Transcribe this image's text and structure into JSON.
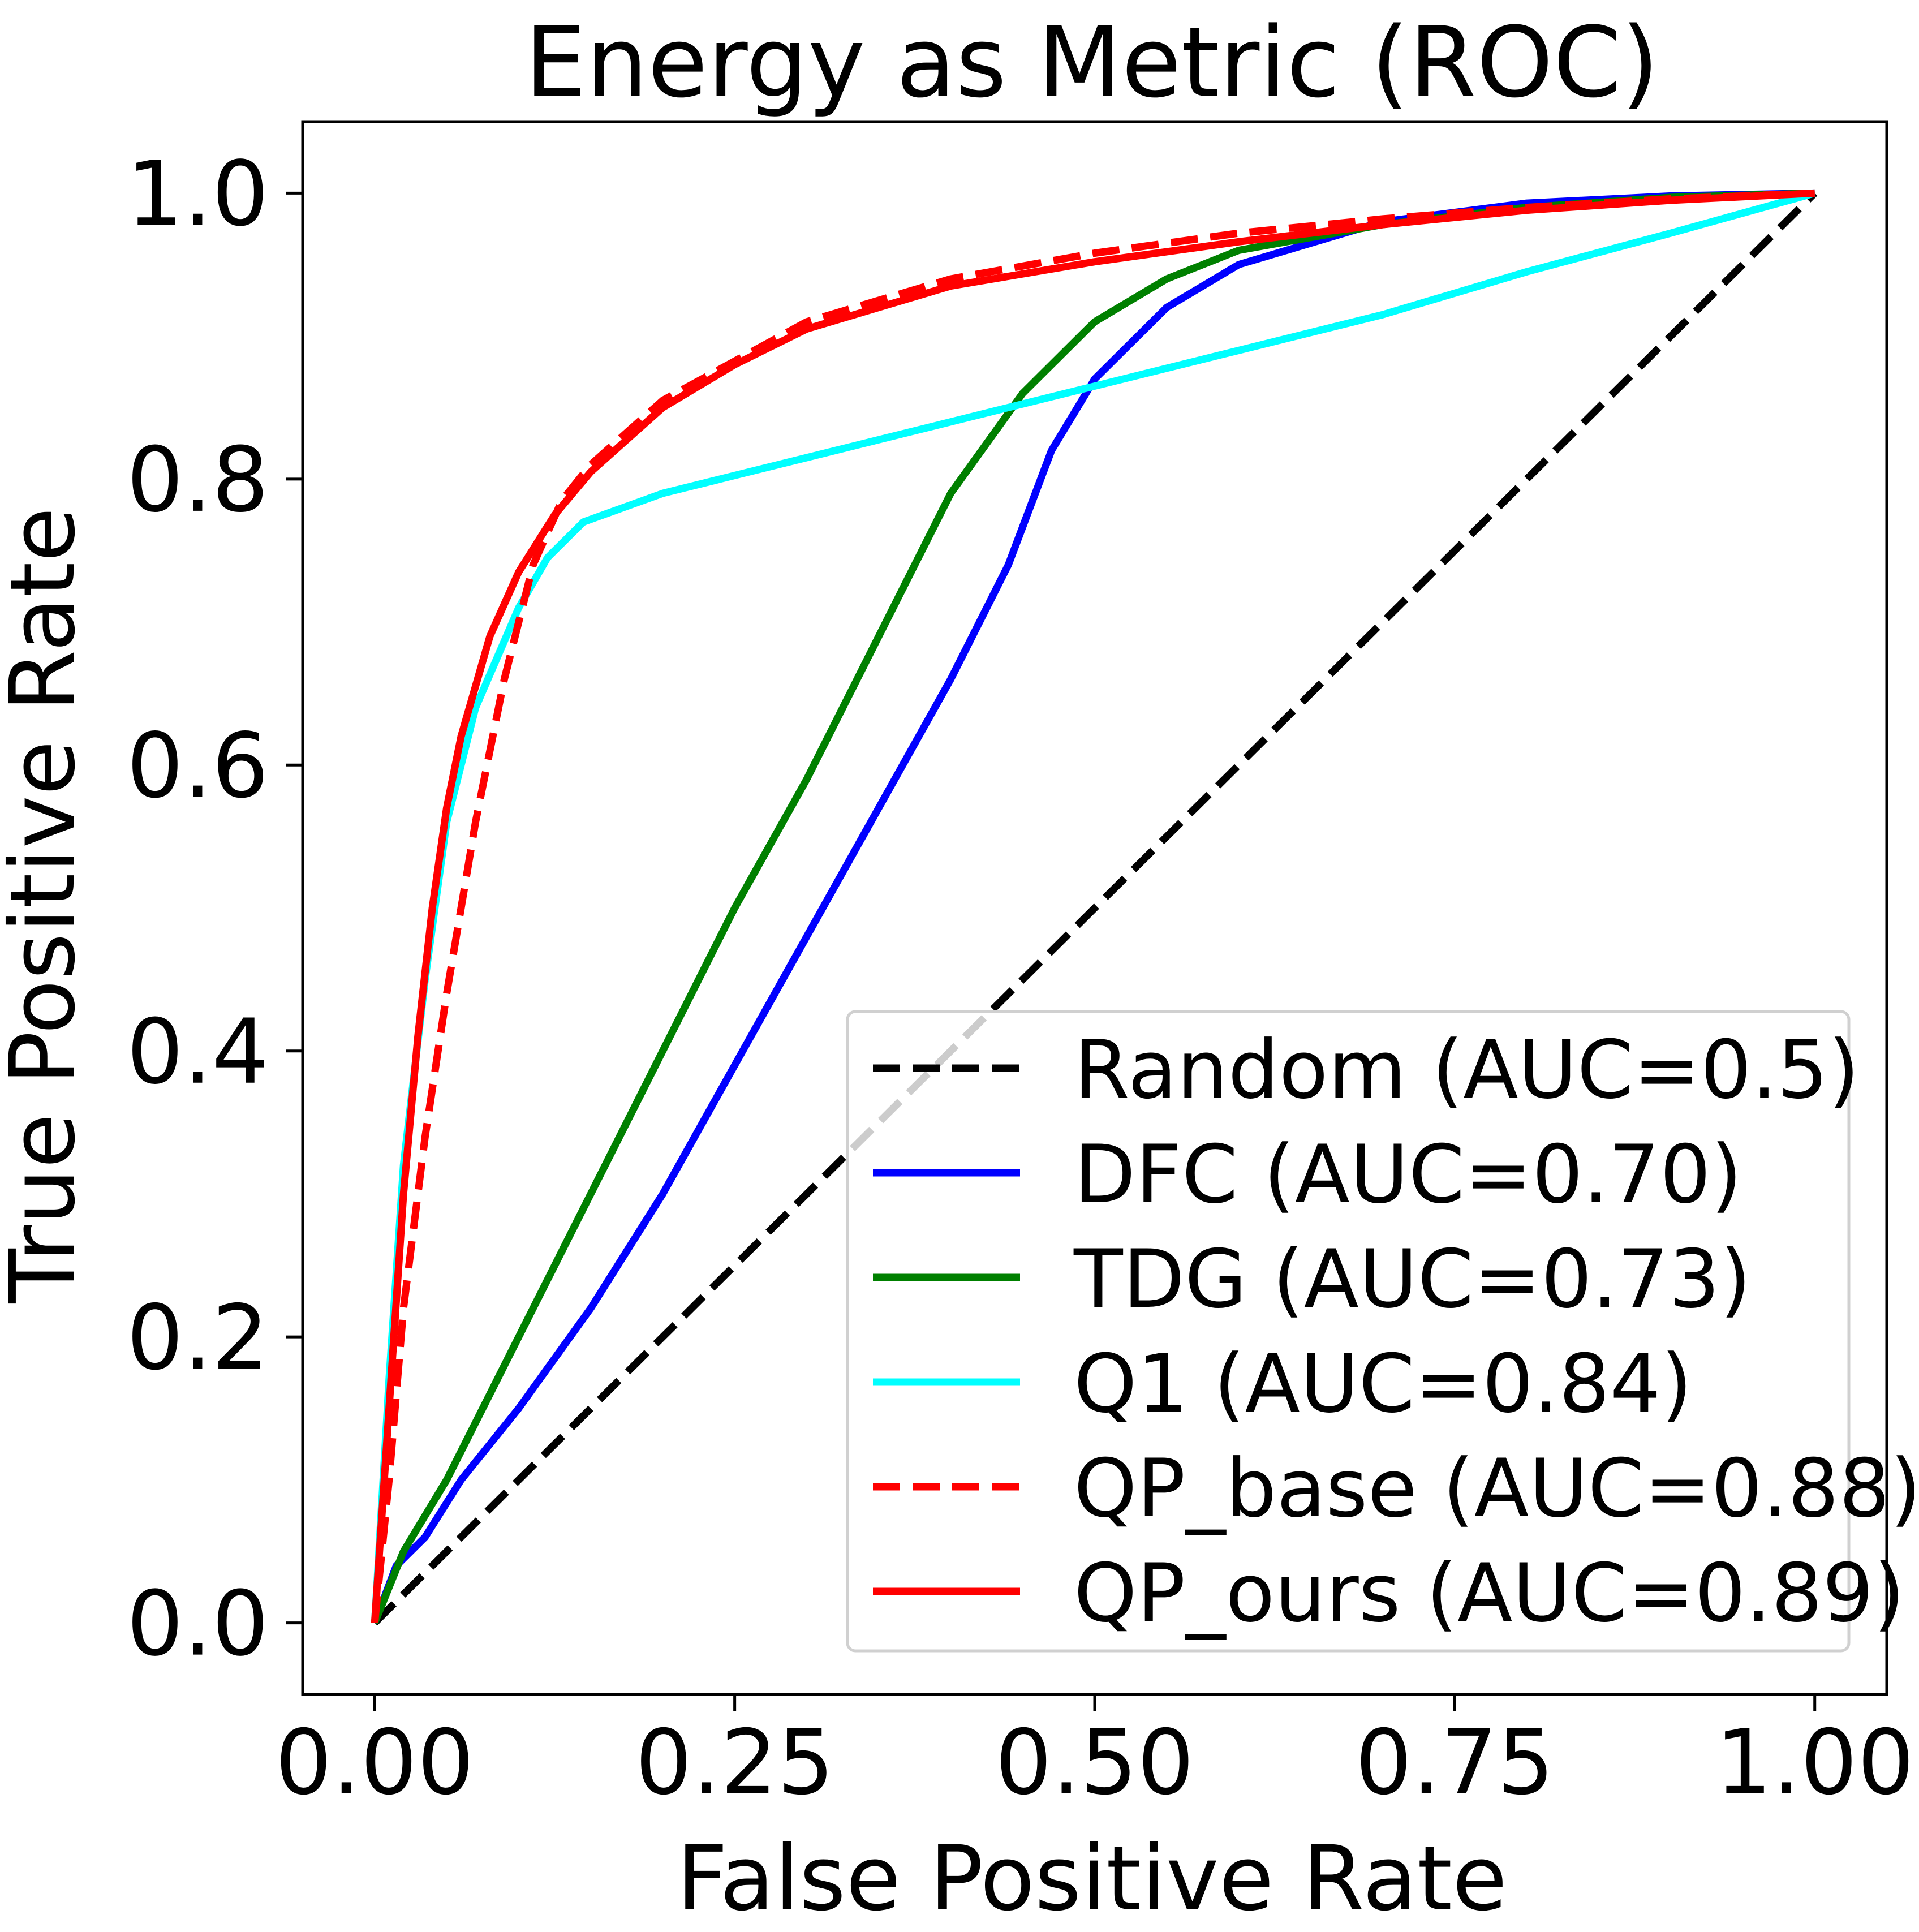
{
  "chart_data": {
    "type": "line",
    "title": "Energy as Metric (ROC)",
    "xlabel": "False Positive Rate",
    "ylabel": "True Positive Rate",
    "xlim": [
      -0.05,
      1.05
    ],
    "ylim": [
      -0.05,
      1.05
    ],
    "xticks": [
      0.0,
      0.25,
      0.5,
      0.75,
      1.0
    ],
    "xtick_labels": [
      "0.00",
      "0.25",
      "0.50",
      "0.75",
      "1.00"
    ],
    "yticks": [
      0.0,
      0.2,
      0.4,
      0.6,
      0.8,
      1.0
    ],
    "ytick_labels": [
      "0.0",
      "0.2",
      "0.4",
      "0.6",
      "0.8",
      "1.0"
    ],
    "grid": false,
    "legend_position": "lower-right",
    "series": [
      {
        "name": "Random (AUC=0.5)",
        "color": "#000000",
        "dashed": true,
        "x": [
          0,
          1
        ],
        "y": [
          0,
          1
        ]
      },
      {
        "name": "DFC (AUC=0.70)",
        "color": "#0000ff",
        "dashed": false,
        "x": [
          0,
          0.015,
          0.035,
          0.06,
          0.1,
          0.15,
          0.2,
          0.25,
          0.3,
          0.35,
          0.4,
          0.44,
          0.47,
          0.5,
          0.55,
          0.6,
          0.7,
          0.8,
          0.9,
          1.0
        ],
        "y": [
          0,
          0.04,
          0.06,
          0.1,
          0.15,
          0.22,
          0.3,
          0.39,
          0.48,
          0.57,
          0.66,
          0.74,
          0.82,
          0.87,
          0.92,
          0.95,
          0.98,
          0.993,
          0.998,
          1.0
        ]
      },
      {
        "name": "TDG (AUC=0.73)",
        "color": "#008000",
        "dashed": false,
        "x": [
          0,
          0.02,
          0.05,
          0.1,
          0.15,
          0.2,
          0.25,
          0.3,
          0.35,
          0.4,
          0.45,
          0.5,
          0.55,
          0.6,
          0.7,
          0.8,
          0.9,
          1.0
        ],
        "y": [
          0,
          0.05,
          0.1,
          0.2,
          0.3,
          0.4,
          0.5,
          0.59,
          0.69,
          0.79,
          0.86,
          0.91,
          0.94,
          0.96,
          0.978,
          0.99,
          0.997,
          1.0
        ]
      },
      {
        "name": "Q1 (AUC=0.84)",
        "color": "#00ffff",
        "dashed": false,
        "x": [
          0,
          0.01,
          0.02,
          0.035,
          0.05,
          0.07,
          0.1,
          0.12,
          0.145,
          0.2,
          0.3,
          0.4,
          0.5,
          0.6,
          0.7,
          0.8,
          0.9,
          1.0
        ],
        "y": [
          0,
          0.17,
          0.32,
          0.45,
          0.56,
          0.64,
          0.71,
          0.745,
          0.77,
          0.79,
          0.815,
          0.84,
          0.865,
          0.89,
          0.915,
          0.945,
          0.972,
          1.0
        ]
      },
      {
        "name": "QP_base (AUC=0.88)",
        "color": "#ff0000",
        "dashed": true,
        "x": [
          0,
          0.01,
          0.02,
          0.035,
          0.05,
          0.07,
          0.09,
          0.11,
          0.13,
          0.15,
          0.2,
          0.3,
          0.4,
          0.5,
          0.6,
          0.7,
          0.8,
          0.9,
          1.0
        ],
        "y": [
          0,
          0.1,
          0.22,
          0.34,
          0.44,
          0.56,
          0.66,
          0.74,
          0.785,
          0.81,
          0.855,
          0.91,
          0.94,
          0.958,
          0.972,
          0.982,
          0.99,
          0.996,
          1.0
        ]
      },
      {
        "name": "QP_ours (AUC=0.89)",
        "color": "#ff0000",
        "dashed": false,
        "x": [
          0,
          0.01,
          0.02,
          0.03,
          0.04,
          0.05,
          0.06,
          0.08,
          0.1,
          0.125,
          0.15,
          0.2,
          0.25,
          0.3,
          0.4,
          0.5,
          0.6,
          0.7,
          0.8,
          0.9,
          1.0
        ],
        "y": [
          0,
          0.15,
          0.3,
          0.41,
          0.5,
          0.57,
          0.62,
          0.69,
          0.735,
          0.775,
          0.805,
          0.85,
          0.88,
          0.905,
          0.935,
          0.952,
          0.966,
          0.978,
          0.988,
          0.995,
          1.0
        ]
      }
    ]
  }
}
